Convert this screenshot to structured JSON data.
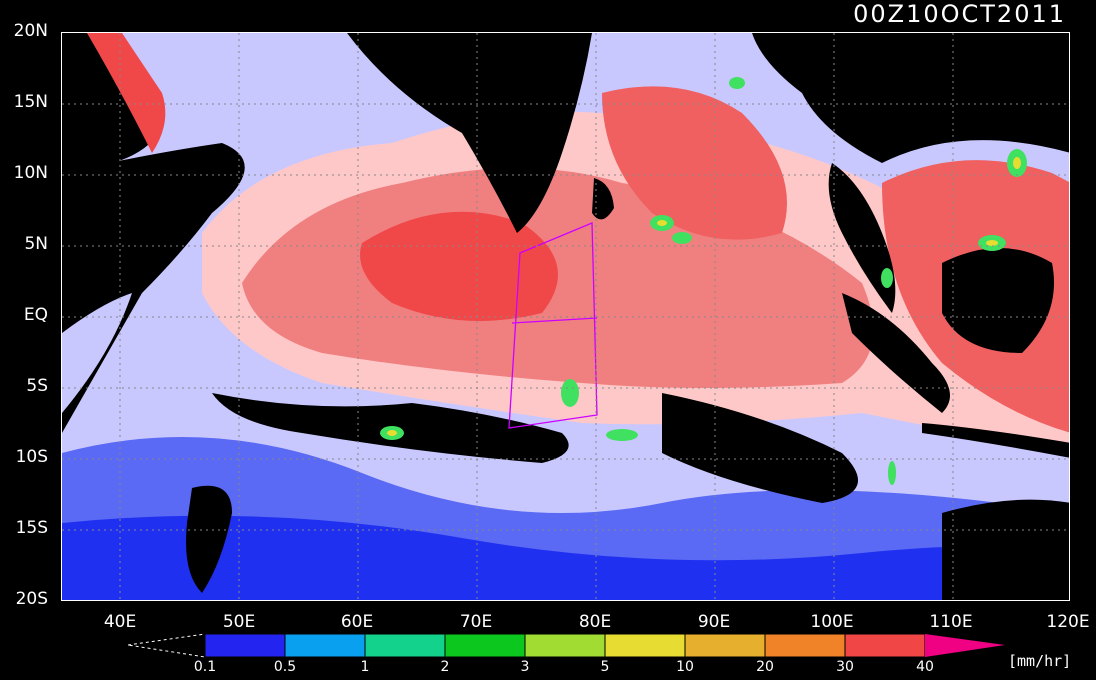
{
  "title": "00Z10OCT2011",
  "map": {
    "lat_labels": [
      "20N",
      "15N",
      "10N",
      "5N",
      "EQ",
      "5S",
      "10S",
      "15S",
      "20S"
    ],
    "lon_labels": [
      "40E",
      "50E",
      "60E",
      "70E",
      "80E",
      "90E",
      "100E",
      "110E",
      "120E"
    ],
    "lon_range": [
      35,
      120
    ],
    "lat_range": [
      -20,
      20
    ],
    "gridlines": "dotted",
    "colors": {
      "land": "#000000",
      "ocean_high": "#f04848",
      "ocean_mid": "#ffc8c8",
      "ocean_low": "#c8c8ff",
      "ocean_south": "#2030f0",
      "rain_cells": "#40e060",
      "box_outline": "#cc00ff"
    }
  },
  "colorbar": {
    "labels": [
      "0.1",
      "0.5",
      "1",
      "2",
      "3",
      "5",
      "10",
      "20",
      "30",
      "40"
    ],
    "colors": [
      "#2424f0",
      "#0aa0f0",
      "#12d28c",
      "#0cc81e",
      "#a0dc32",
      "#e6dc32",
      "#e6af2d",
      "#f08228",
      "#f04646",
      "#f00082"
    ],
    "units": "[mm/hr]"
  }
}
